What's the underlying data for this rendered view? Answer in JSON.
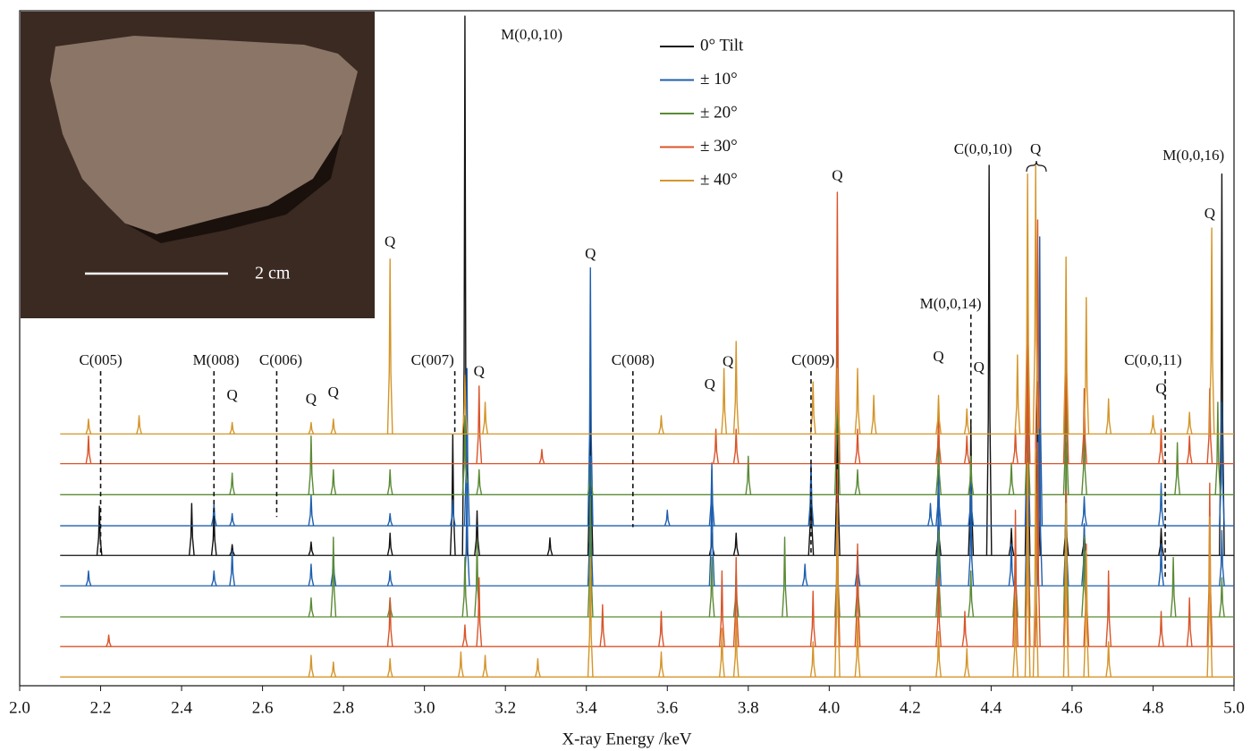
{
  "chart_data": {
    "type": "line",
    "x_label": "X-ray Energy /keV",
    "xlim": [
      2,
      5
    ],
    "xticks": [
      {
        "value": 2,
        "label": "2.0"
      },
      2.2,
      2.4,
      2.6,
      2.8,
      {
        "value": 3,
        "label": "3.0"
      },
      3.2,
      3.4,
      3.6,
      3.8,
      {
        "value": 4,
        "label": "4.0"
      },
      4.2,
      4.4,
      4.6,
      4.8,
      {
        "value": 5,
        "label": "5.0"
      }
    ],
    "ylim": [
      0,
      100
    ],
    "x_start": 2.1,
    "legend": "top-center",
    "inset_label": "2 cm",
    "series": [
      {
        "name": "0° Tilt",
        "color": "#111111",
        "baseline": 19.3,
        "x": [
          2.197,
          2.425,
          2.48,
          2.525,
          2.72,
          2.915,
          3.07,
          3.1,
          3.13,
          3.31,
          3.41,
          3.71,
          3.77,
          3.955,
          4.02,
          4.27,
          4.35,
          4.395,
          4.45,
          4.49,
          4.515,
          4.585,
          4.63,
          4.82,
          4.97
        ],
        "values": [
          26.6,
          27.0,
          25.9,
          20.9,
          21.3,
          22.6,
          37.2,
          99.2,
          25.9,
          21.9,
          47,
          22.6,
          22.6,
          32.5,
          45,
          25.9,
          39.2,
          77.1,
          23.3,
          52,
          45,
          27,
          23.3,
          23.3,
          75.8
        ]
      },
      {
        "name": "± 10°",
        "color": "#1f5fae",
        "baseline": 23.7,
        "x": [
          2.48,
          2.525,
          2.72,
          2.915,
          3.07,
          3.105,
          3.41,
          3.6,
          3.71,
          3.955,
          4.25,
          4.27,
          4.35,
          4.49,
          4.52,
          4.63,
          4.82,
          4.97
        ],
        "values": [
          27,
          25.5,
          28.2,
          25.5,
          27.5,
          47,
          61.9,
          26,
          33,
          33,
          27,
          32,
          30.5,
          52,
          66.5,
          28,
          30,
          42
        ]
      },
      {
        "name": "± 20°",
        "color": "#5a8a35",
        "baseline": 28.3,
        "x": [
          2.525,
          2.72,
          2.775,
          2.915,
          3.1,
          3.135,
          3.41,
          3.8,
          4.02,
          4.07,
          4.27,
          4.35,
          4.45,
          4.49,
          4.585,
          4.63,
          4.86,
          4.96
        ],
        "values": [
          31.5,
          37,
          32,
          32,
          40,
          32,
          34,
          34,
          52,
          32,
          37,
          34,
          33,
          46,
          47,
          39,
          36,
          42
        ]
      },
      {
        "name": "± 30°",
        "color": "#d9542a",
        "baseline": 32.9,
        "x": [
          2.17,
          3.135,
          3.29,
          3.72,
          3.77,
          4.02,
          4.07,
          4.27,
          4.34,
          4.46,
          4.49,
          4.515,
          4.585,
          4.63,
          4.82,
          4.89,
          4.94
        ],
        "values": [
          37,
          44.4,
          35,
          38,
          38,
          73.1,
          38,
          40,
          37,
          38,
          62,
          69,
          56,
          44,
          38,
          37,
          44
        ]
      },
      {
        "name": "± 40°",
        "color": "#d4952a",
        "baseline": 37.3,
        "x": [
          2.17,
          2.295,
          2.525,
          2.72,
          2.775,
          2.915,
          3.1,
          3.15,
          3.585,
          3.74,
          3.77,
          3.96,
          4.02,
          4.07,
          4.11,
          4.27,
          4.34,
          4.465,
          4.49,
          4.51,
          4.585,
          4.635,
          4.69,
          4.8,
          4.89,
          4.945
        ],
        "values": [
          39.5,
          40,
          39,
          39,
          39.5,
          63.2,
          46,
          42,
          40,
          47,
          51,
          45,
          47,
          47,
          43,
          43,
          41,
          49,
          75.8,
          77.1,
          63.5,
          57.5,
          42.5,
          40,
          40.5,
          67.8
        ]
      },
      {
        "name": "± 10°",
        "color": "#1f5fae",
        "baseline": 14.8,
        "x": [
          2.17,
          2.48,
          2.525,
          2.72,
          2.775,
          2.915,
          3.105,
          3.41,
          3.71,
          3.94,
          4.07,
          4.27,
          4.35,
          4.45,
          4.49,
          4.52,
          4.585,
          4.63,
          4.82,
          4.97
        ],
        "values": [
          17,
          17,
          20,
          18,
          20,
          17,
          30,
          34,
          32,
          18,
          20,
          29,
          27,
          21,
          40,
          38,
          28,
          24,
          21,
          23
        ]
      },
      {
        "name": "± 20°",
        "color": "#5a8a35",
        "baseline": 10.2,
        "x": [
          2.72,
          2.775,
          2.915,
          3.1,
          3.13,
          3.41,
          3.71,
          3.77,
          3.89,
          4.02,
          4.07,
          4.27,
          4.35,
          4.46,
          4.49,
          4.585,
          4.63,
          4.85,
          4.97
        ],
        "values": [
          13,
          22,
          13,
          19,
          21.5,
          28,
          19,
          17,
          22,
          25,
          19,
          23,
          17,
          22,
          42,
          36,
          22,
          19,
          16
        ]
      },
      {
        "name": "± 30°",
        "color": "#d9542a",
        "baseline": 5.8,
        "x": [
          2.22,
          2.915,
          3.1,
          3.135,
          3.44,
          3.585,
          3.735,
          3.77,
          3.96,
          4.02,
          4.07,
          4.27,
          4.335,
          4.46,
          4.49,
          4.515,
          4.585,
          4.635,
          4.69,
          4.82,
          4.89,
          4.94
        ],
        "values": [
          7.5,
          13,
          9,
          16,
          12,
          11,
          17,
          19,
          14,
          32,
          21,
          16,
          11,
          26,
          44,
          36,
          29,
          21,
          17,
          11,
          13,
          30
        ]
      },
      {
        "name": "± 40°",
        "color": "#d4952a",
        "baseline": 1.3,
        "x": [
          2.72,
          2.775,
          2.915,
          3.09,
          3.15,
          3.28,
          3.41,
          3.585,
          3.735,
          3.77,
          3.96,
          4.02,
          4.07,
          4.27,
          4.34,
          4.46,
          4.49,
          4.51,
          4.585,
          4.635,
          4.69,
          4.94
        ],
        "values": [
          4.5,
          3.5,
          4,
          5,
          4.5,
          4,
          19,
          5,
          8.5,
          10,
          6.5,
          27,
          10,
          8,
          5.5,
          13,
          33,
          35,
          27,
          20,
          6.5,
          25
        ]
      }
    ],
    "annotations": [
      {
        "text": "C(005)",
        "x": 2.2,
        "y": 48.1
      },
      {
        "text": "M(008)",
        "x": 2.485,
        "y": 48.1
      },
      {
        "text": "C(006)",
        "x": 2.645,
        "y": 48.1
      },
      {
        "text": "C(007)",
        "x": 3.02,
        "y": 48.1
      },
      {
        "text": "C(008)",
        "x": 3.515,
        "y": 48.1
      },
      {
        "text": "C(009)",
        "x": 3.96,
        "y": 48.1
      },
      {
        "text": "C(0,0,11)",
        "x": 4.8,
        "y": 48.1
      },
      {
        "text": "M(0,0,14)",
        "x": 4.3,
        "y": 56.4
      },
      {
        "text": "C(0,0,10)",
        "x": 4.38,
        "y": 79.3
      },
      {
        "text": "M(0,0,10)",
        "x": 3.265,
        "y": 96.3
      },
      {
        "text": "M(0,0,16)",
        "x": 4.9,
        "y": 78.4
      },
      {
        "text": "Q",
        "x": 2.525,
        "y": 42.9
      },
      {
        "text": "Q",
        "x": 2.72,
        "y": 42.3
      },
      {
        "text": "Q",
        "x": 2.775,
        "y": 43.3
      },
      {
        "text": "Q",
        "x": 2.915,
        "y": 65.6
      },
      {
        "text": "Q",
        "x": 3.135,
        "y": 46.4
      },
      {
        "text": "Q",
        "x": 3.41,
        "y": 63.8
      },
      {
        "text": "Q",
        "x": 3.705,
        "y": 44.5
      },
      {
        "text": "Q",
        "x": 3.75,
        "y": 47.9
      },
      {
        "text": "Q",
        "x": 4.02,
        "y": 75.4
      },
      {
        "text": "Q",
        "x": 4.27,
        "y": 48.6
      },
      {
        "text": "Q",
        "x": 4.37,
        "y": 47.0
      },
      {
        "text": "Q",
        "x": 4.51,
        "y": 79.3
      },
      {
        "text": "Q",
        "x": 4.82,
        "y": 43.8
      },
      {
        "text": "Q",
        "x": 4.94,
        "y": 69.8
      }
    ],
    "reference_lines": [
      {
        "x": 2.2,
        "y_start": 46.6,
        "y_end": 19.5
      },
      {
        "x": 2.48,
        "y_start": 46.6,
        "y_end": 22
      },
      {
        "x": 2.635,
        "y_start": 46.6,
        "y_end": 25
      },
      {
        "x": 3.075,
        "y_start": 46.6,
        "y_end": 37.5
      },
      {
        "x": 3.515,
        "y_start": 46.6,
        "y_end": 23.5
      },
      {
        "x": 3.955,
        "y_start": 46.6,
        "y_end": 19.5
      },
      {
        "x": 4.35,
        "y_start": 55,
        "y_end": 38
      },
      {
        "x": 4.83,
        "y_start": 46.6,
        "y_end": 16
      }
    ]
  }
}
